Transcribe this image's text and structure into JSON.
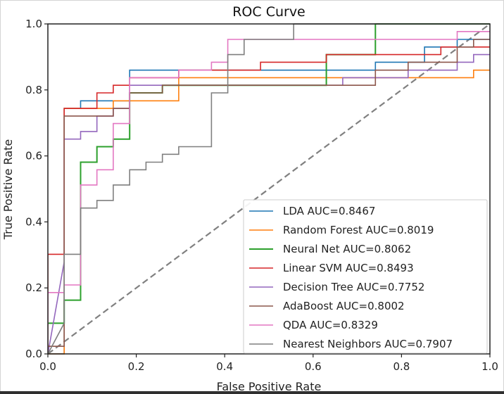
{
  "chart_data": {
    "type": "line",
    "title": "ROC Curve",
    "xlabel": "False Positive Rate",
    "ylabel": "True Positive Rate",
    "xlim": [
      0.0,
      1.0
    ],
    "ylim": [
      0.0,
      1.0
    ],
    "xticks": [
      "0.0",
      "0.2",
      "0.4",
      "0.6",
      "0.8",
      "1.0"
    ],
    "yticks": [
      "0.0",
      "0.2",
      "0.4",
      "0.6",
      "0.8",
      "1.0"
    ],
    "grid": false,
    "legend_position": "lower-right",
    "reference_line": {
      "name": "chance",
      "x": [
        0,
        1
      ],
      "y": [
        0,
        1
      ],
      "color": "#808080",
      "style": "dashed"
    },
    "series": [
      {
        "name": "LDA AUC=0.8467",
        "color": "#1f77b4",
        "x": [
          0,
          0.037,
          0.037,
          0.074,
          0.074,
          0.185,
          0.185,
          0.741,
          0.741,
          0.852,
          0.852,
          0.926,
          0.926,
          1.0
        ],
        "y": [
          0,
          0,
          0.744,
          0.744,
          0.767,
          0.767,
          0.86,
          0.86,
          0.884,
          0.884,
          0.93,
          0.93,
          0.953,
          0.953
        ]
      },
      {
        "name": "Random Forest AUC=0.8019",
        "color": "#ff7f0e",
        "x": [
          0,
          0.037,
          0.037,
          0.148,
          0.148,
          0.296,
          0.296,
          0.963,
          0.963,
          1.0
        ],
        "y": [
          0,
          0,
          0.744,
          0.744,
          0.767,
          0.767,
          0.837,
          0.837,
          0.86,
          0.86
        ]
      },
      {
        "name": "Neural Net AUC=0.8062",
        "color": "#2ca02c",
        "x": [
          0,
          0,
          0.037,
          0.037,
          0.074,
          0.074,
          0.111,
          0.111,
          0.148,
          0.148,
          0.185,
          0.185,
          0.259,
          0.259,
          0.63,
          0.63,
          0.741,
          0.741,
          1.0
        ],
        "y": [
          0,
          0.093,
          0.093,
          0.163,
          0.163,
          0.581,
          0.581,
          0.628,
          0.628,
          0.651,
          0.651,
          0.791,
          0.791,
          0.814,
          0.814,
          0.907,
          0.907,
          1.0,
          1.0
        ]
      },
      {
        "name": "Linear SVM AUC=0.8493",
        "color": "#d62728",
        "x": [
          0,
          0,
          0.037,
          0.037,
          0.111,
          0.111,
          0.148,
          0.148,
          0.185,
          0.185,
          0.296,
          0.296,
          0.481,
          0.481,
          0.63,
          0.63,
          0.889,
          0.889,
          1.0
        ],
        "y": [
          0,
          0.302,
          0.302,
          0.744,
          0.744,
          0.791,
          0.791,
          0.814,
          0.814,
          0.837,
          0.837,
          0.86,
          0.86,
          0.884,
          0.884,
          0.907,
          0.907,
          0.93,
          0.93
        ]
      },
      {
        "name": "Decision Tree AUC=0.7752",
        "color": "#9467bd",
        "x": [
          0,
          0.037,
          0.037,
          0.074,
          0.074,
          0.111,
          0.111,
          0.148,
          0.148,
          0.185,
          0.185,
          0.667,
          0.667,
          0.815,
          0.815,
          0.926,
          0.926,
          0.963,
          0.963,
          1.0
        ],
        "y": [
          0,
          0.279,
          0.651,
          0.651,
          0.674,
          0.674,
          0.721,
          0.721,
          0.744,
          0.744,
          0.814,
          0.814,
          0.837,
          0.837,
          0.86,
          0.86,
          0.884,
          0.884,
          0.907,
          0.907
        ]
      },
      {
        "name": "AdaBoost AUC=0.8002",
        "color": "#8c564b",
        "x": [
          0,
          0,
          0.037,
          0.037,
          0.148,
          0.148,
          0.185,
          0.185,
          0.259,
          0.259,
          0.741,
          0.741,
          0.815,
          0.815,
          0.926,
          0.926,
          0.963,
          0.963,
          1.0
        ],
        "y": [
          0,
          0.023,
          0.023,
          0.721,
          0.721,
          0.744,
          0.744,
          0.791,
          0.791,
          0.814,
          0.814,
          0.86,
          0.86,
          0.884,
          0.884,
          0.93,
          0.93,
          0.953,
          0.953
        ]
      },
      {
        "name": "QDA AUC=0.8329",
        "color": "#e377c2",
        "x": [
          0,
          0,
          0.037,
          0.037,
          0.074,
          0.074,
          0.111,
          0.111,
          0.148,
          0.148,
          0.185,
          0.185,
          0.296,
          0.296,
          0.37,
          0.37,
          0.407,
          0.407,
          0.926,
          0.926,
          1.0
        ],
        "y": [
          0,
          0.186,
          0.186,
          0.209,
          0.209,
          0.512,
          0.512,
          0.558,
          0.558,
          0.698,
          0.698,
          0.837,
          0.837,
          0.86,
          0.86,
          0.884,
          0.884,
          0.953,
          0.953,
          0.977,
          0.977
        ]
      },
      {
        "name": "Nearest Neighbors AUC=0.7907",
        "color": "#7f7f7f",
        "x": [
          0,
          0.037,
          0.037,
          0.074,
          0.074,
          0.111,
          0.111,
          0.148,
          0.148,
          0.185,
          0.185,
          0.222,
          0.222,
          0.259,
          0.259,
          0.296,
          0.296,
          0.37,
          0.37,
          0.407,
          0.407,
          0.444,
          0.444,
          0.556,
          0.556,
          1.0
        ],
        "y": [
          0,
          0.093,
          0.302,
          0.302,
          0.442,
          0.442,
          0.465,
          0.465,
          0.512,
          0.512,
          0.558,
          0.558,
          0.581,
          0.581,
          0.605,
          0.605,
          0.628,
          0.628,
          0.791,
          0.791,
          0.907,
          0.907,
          0.953,
          0.953,
          1.0,
          1.0
        ]
      }
    ]
  }
}
